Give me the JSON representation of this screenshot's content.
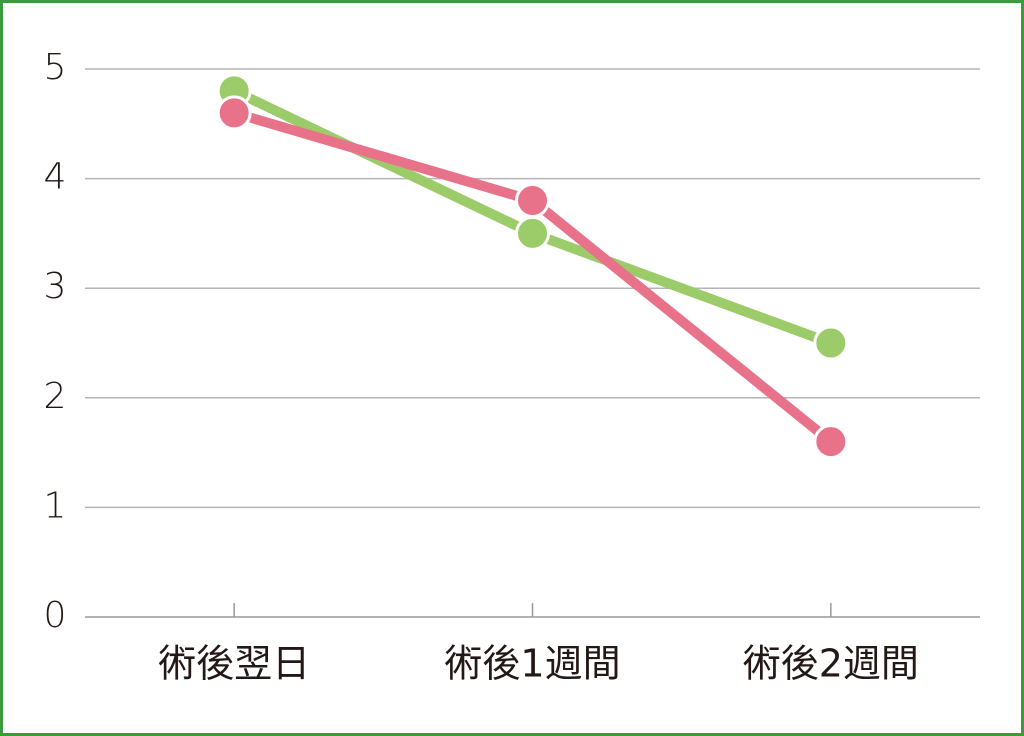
{
  "chart_data": {
    "type": "line",
    "categories": [
      "術後翌日",
      "術後1週間",
      "術後2週間"
    ],
    "series": [
      {
        "color": "#9ccb69",
        "values": [
          4.8,
          3.5,
          2.5
        ]
      },
      {
        "color": "#e9728b",
        "values": [
          4.6,
          3.8,
          1.6
        ]
      }
    ],
    "ylim": [
      0,
      5
    ],
    "yticks": [
      0,
      1,
      2,
      3,
      4,
      5
    ],
    "grid": true
  }
}
